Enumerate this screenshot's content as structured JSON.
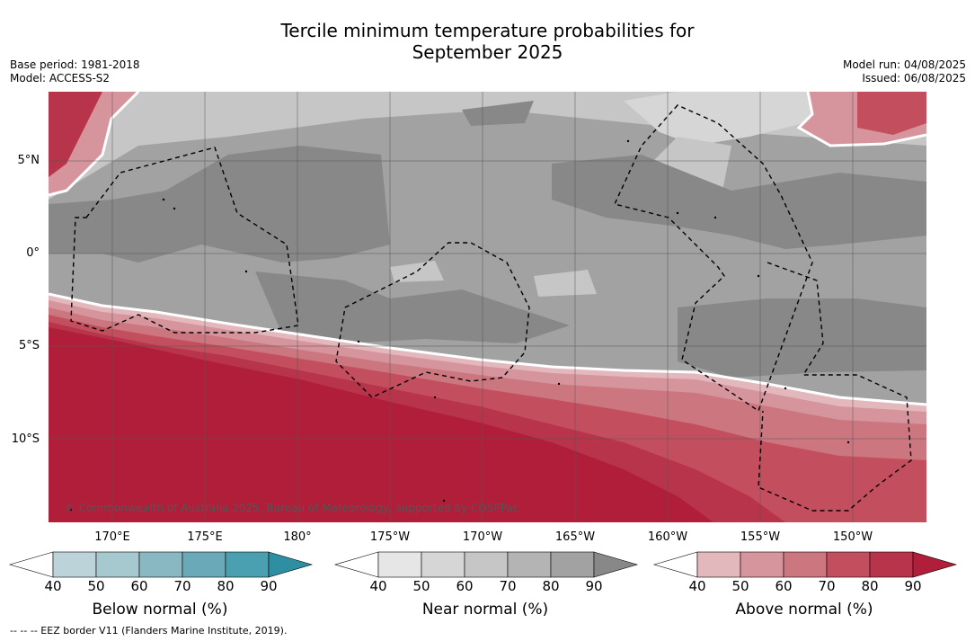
{
  "title_line1": "Tercile minimum temperature probabilities for",
  "title_line2": "September 2025",
  "meta_left": {
    "base_period": "Base period: 1981-2018",
    "model": "Model: ACCESS-S2"
  },
  "meta_right": {
    "model_run": "Model run: 04/08/2025",
    "issued": "Issued: 06/08/2025"
  },
  "lat_labels": [
    "5°N",
    "0°",
    "5°S",
    "10°S"
  ],
  "lon_labels": [
    "170°E",
    "175°E",
    "180°",
    "175°W",
    "170°W",
    "165°W",
    "160°W",
    "155°W",
    "150°W"
  ],
  "credit": "© Commonwealth of Australia 2025, Bureau of Meteorology, supported by COSPPac",
  "colorbars": [
    {
      "title": "Below normal (%)",
      "ticks": [
        "40",
        "50",
        "60",
        "70",
        "80",
        "90"
      ],
      "colors": [
        "#ffffff",
        "#bcd3da",
        "#a6c9cf",
        "#8ab8c2",
        "#6aaab8",
        "#4a9fb0",
        "#2e8fa3"
      ]
    },
    {
      "title": "Near normal (%)",
      "ticks": [
        "40",
        "50",
        "60",
        "70",
        "80",
        "90"
      ],
      "colors": [
        "#ffffff",
        "#e6e6e6",
        "#d6d6d6",
        "#c6c6c6",
        "#b4b4b4",
        "#a2a2a2",
        "#888888"
      ]
    },
    {
      "title": "Above normal (%)",
      "ticks": [
        "40",
        "50",
        "60",
        "70",
        "80",
        "90"
      ],
      "colors": [
        "#ffffff",
        "#e3b8bd",
        "#d6949c",
        "#cc7680",
        "#c34e5e",
        "#b8344a",
        "#b01e3a"
      ]
    }
  ],
  "eez_note": "--  --  -- EEZ border V11 (Flanders Marine Institute, 2019)."
}
